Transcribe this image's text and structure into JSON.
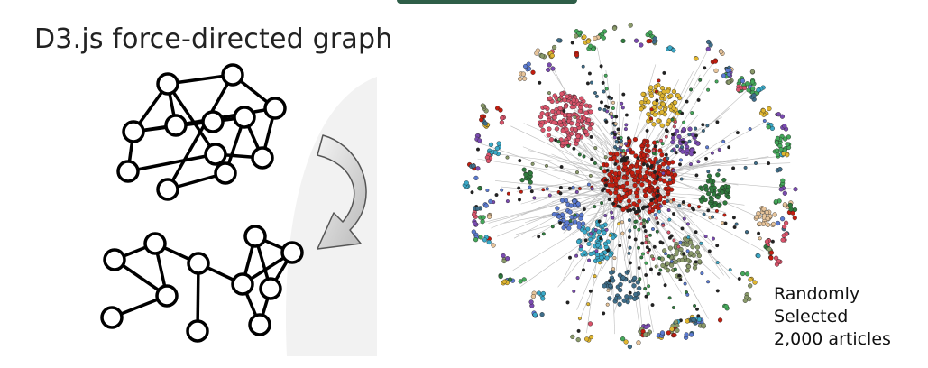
{
  "slide": {
    "title": "D3.js force-directed graph",
    "caption_lines": [
      "Randomly",
      "Selected",
      "2,000 articles"
    ]
  },
  "icons": {
    "arrow": "curved-arrow-icon"
  },
  "colors": {
    "node_stroke": "#000000",
    "clusters": [
      "#d9536a",
      "#c21d0f",
      "#e0b630",
      "#3aa9c8",
      "#5a7ad0",
      "#2f7a3d",
      "#8a9a6a",
      "#7a4bb0",
      "#3f6e8a",
      "#44a85a",
      "#e7c49a"
    ]
  }
}
